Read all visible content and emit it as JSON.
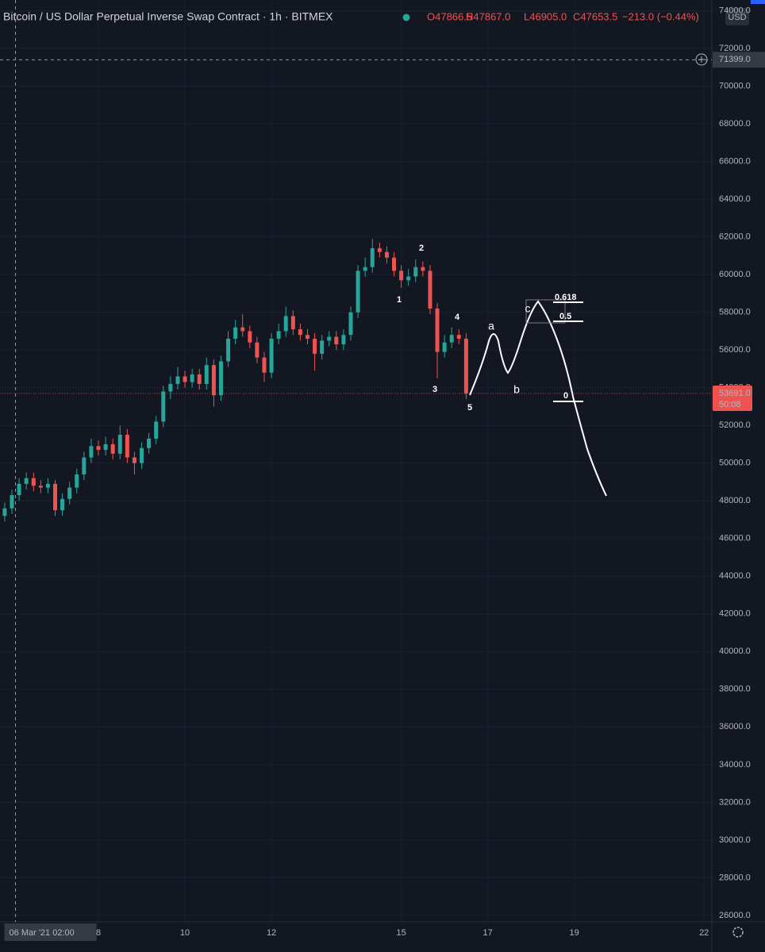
{
  "chart_data": {
    "type": "candlestick",
    "title": "Bitcoin / US Dollar Perpetual Inverse Swap Contract · 1h · BITMEX",
    "ohlc_labels": [
      "O47866.5",
      "H47867.0",
      "L46905.0",
      "C47653.5",
      "−213.0 (−0.44%)"
    ],
    "currency": "USD",
    "up_color": "#26a69a",
    "down_color": "#ef5350",
    "x": [
      "2021-03-05 20:00",
      "2021-03-06 00:00",
      "2021-03-06 04:00",
      "2021-03-06 08:00",
      "2021-03-06 12:00",
      "2021-03-06 16:00",
      "2021-03-06 20:00",
      "2021-03-07 00:00",
      "2021-03-07 04:00",
      "2021-03-07 08:00",
      "2021-03-07 12:00",
      "2021-03-07 16:00",
      "2021-03-07 20:00",
      "2021-03-08 00:00",
      "2021-03-08 04:00",
      "2021-03-08 08:00",
      "2021-03-08 12:00",
      "2021-03-08 16:00",
      "2021-03-08 20:00",
      "2021-03-09 00:00",
      "2021-03-09 04:00",
      "2021-03-09 08:00",
      "2021-03-09 12:00",
      "2021-03-09 16:00",
      "2021-03-09 20:00",
      "2021-03-10 00:00",
      "2021-03-10 04:00",
      "2021-03-10 08:00",
      "2021-03-10 12:00",
      "2021-03-10 16:00",
      "2021-03-10 20:00",
      "2021-03-11 00:00",
      "2021-03-11 04:00",
      "2021-03-11 08:00",
      "2021-03-11 12:00",
      "2021-03-11 16:00",
      "2021-03-11 20:00",
      "2021-03-12 00:00",
      "2021-03-12 04:00",
      "2021-03-12 08:00",
      "2021-03-12 12:00",
      "2021-03-12 16:00",
      "2021-03-12 20:00",
      "2021-03-13 00:00",
      "2021-03-13 04:00",
      "2021-03-13 08:00",
      "2021-03-13 12:00",
      "2021-03-13 16:00",
      "2021-03-13 20:00",
      "2021-03-14 00:00",
      "2021-03-14 04:00",
      "2021-03-14 08:00",
      "2021-03-14 12:00",
      "2021-03-14 16:00",
      "2021-03-14 20:00",
      "2021-03-15 00:00",
      "2021-03-15 04:00",
      "2021-03-15 08:00",
      "2021-03-15 12:00",
      "2021-03-15 16:00",
      "2021-03-15 20:00",
      "2021-03-16 00:00",
      "2021-03-16 04:00",
      "2021-03-16 08:00",
      "2021-03-16 12:00"
    ],
    "open": [
      47200,
      47600,
      48300,
      48900,
      49200,
      48800,
      48700,
      48900,
      47500,
      48100,
      48700,
      49400,
      50300,
      50900,
      50700,
      51000,
      50500,
      51500,
      50300,
      50000,
      50800,
      51300,
      52200,
      53800,
      54200,
      54600,
      54300,
      54700,
      54200,
      55200,
      53600,
      55400,
      56600,
      57200,
      57000,
      56400,
      55600,
      54800,
      56600,
      57000,
      57800,
      57100,
      56800,
      56600,
      55800,
      56500,
      56700,
      56300,
      56800,
      58000,
      60200,
      60400,
      61400,
      61200,
      60900,
      60200,
      59700,
      59900,
      60400,
      60200,
      58200,
      55900,
      56400,
      56800,
      56600
    ],
    "high": [
      47900,
      48600,
      49200,
      49500,
      49500,
      49100,
      49200,
      49100,
      48400,
      49000,
      49700,
      50600,
      51300,
      51200,
      51400,
      51300,
      52000,
      51800,
      50600,
      51100,
      51600,
      52500,
      54100,
      54600,
      55100,
      54900,
      55000,
      55000,
      55600,
      55500,
      55700,
      57000,
      57600,
      57900,
      57300,
      56700,
      55900,
      56900,
      57400,
      58300,
      58100,
      57400,
      57100,
      56900,
      56800,
      57000,
      57000,
      57100,
      58300,
      60500,
      60900,
      61900,
      61700,
      61500,
      61200,
      60500,
      60300,
      60800,
      60700,
      60500,
      58500,
      56800,
      57200,
      57100,
      56900
    ],
    "low": [
      46900,
      47300,
      48000,
      48600,
      48500,
      48400,
      48400,
      47200,
      47200,
      47800,
      48400,
      49100,
      50000,
      50400,
      50400,
      50200,
      50200,
      50000,
      49400,
      49700,
      50500,
      51000,
      51900,
      53400,
      53900,
      54000,
      54000,
      53900,
      53900,
      53000,
      53300,
      55100,
      56300,
      56700,
      56100,
      55300,
      54300,
      54500,
      56300,
      56700,
      56800,
      56500,
      56300,
      54900,
      55500,
      56200,
      56000,
      56000,
      56500,
      57700,
      59900,
      60100,
      60900,
      60600,
      59900,
      59300,
      59400,
      59600,
      59900,
      57900,
      54500,
      55600,
      56100,
      56300,
      53400
    ],
    "close": [
      47600,
      48300,
      48900,
      49200,
      48800,
      48700,
      48900,
      47500,
      48100,
      48700,
      49400,
      50300,
      50900,
      50700,
      51000,
      50500,
      51500,
      50300,
      50000,
      50800,
      51300,
      52200,
      53800,
      54200,
      54600,
      54300,
      54700,
      54200,
      55200,
      53600,
      55400,
      56600,
      57200,
      57000,
      56400,
      55600,
      54800,
      56600,
      57000,
      57800,
      57100,
      56800,
      56600,
      55800,
      56500,
      56700,
      56300,
      56800,
      58000,
      60200,
      60400,
      61400,
      61200,
      60900,
      60200,
      59700,
      59900,
      60400,
      60200,
      58200,
      55900,
      56400,
      56800,
      56600,
      53700
    ],
    "xlim": [
      "2021-03-05 17:24",
      "2021-03-22 04:19"
    ],
    "xticks": [
      {
        "value": "2021-03-08 00:00",
        "label": "8"
      },
      {
        "value": "2021-03-10 00:00",
        "label": "10"
      },
      {
        "value": "2021-03-12 00:00",
        "label": "12"
      },
      {
        "value": "2021-03-15 00:00",
        "label": "15"
      },
      {
        "value": "2021-03-17 00:00",
        "label": "17"
      },
      {
        "value": "2021-03-19 00:00",
        "label": "19"
      },
      {
        "value": "2021-03-22 00:00",
        "label": "22"
      }
    ],
    "ylim": [
      25660,
      74570
    ],
    "yticks": [
      {
        "value": 26000,
        "label": "26000.0"
      },
      {
        "value": 28000,
        "label": "28000.0"
      },
      {
        "value": 30000,
        "label": "30000.0"
      },
      {
        "value": 32000,
        "label": "32000.0"
      },
      {
        "value": 34000,
        "label": "34000.0"
      },
      {
        "value": 36000,
        "label": "36000.0"
      },
      {
        "value": 38000,
        "label": "38000.0"
      },
      {
        "value": 40000,
        "label": "40000.0"
      },
      {
        "value": 42000,
        "label": "42000.0"
      },
      {
        "value": 44000,
        "label": "44000.0"
      },
      {
        "value": 46000,
        "label": "46000.0"
      },
      {
        "value": 48000,
        "label": "48000.0"
      },
      {
        "value": 50000,
        "label": "50000.0"
      },
      {
        "value": 52000,
        "label": "52000.0"
      },
      {
        "value": 54000,
        "label": "54000.0"
      },
      {
        "value": 56000,
        "label": "56000.0"
      },
      {
        "value": 58000,
        "label": "58000.0"
      },
      {
        "value": 60000,
        "label": "60000.0"
      },
      {
        "value": 62000,
        "label": "62000.0"
      },
      {
        "value": 64000,
        "label": "64000.0"
      },
      {
        "value": 66000,
        "label": "66000.0"
      },
      {
        "value": 68000,
        "label": "68000.0"
      },
      {
        "value": 70000,
        "label": "70000.0"
      },
      {
        "value": 72000,
        "label": "72000.0"
      },
      {
        "value": 74000,
        "label": "74000.0"
      }
    ],
    "grid": true,
    "last_price": {
      "value": 53691,
      "label": "53691.0",
      "countdown": "50:08"
    },
    "crosshair": {
      "price": {
        "value": 71399,
        "label": "71399.0"
      },
      "time": {
        "value": "2021-03-06 02:00",
        "label": "06 Mar '21  02:00"
      }
    },
    "wave_labels": [
      "1",
      "2",
      "3",
      "4",
      "5",
      "a",
      "b",
      "c"
    ],
    "fib_labels": [
      "0.618",
      "0.5",
      "0"
    ]
  }
}
